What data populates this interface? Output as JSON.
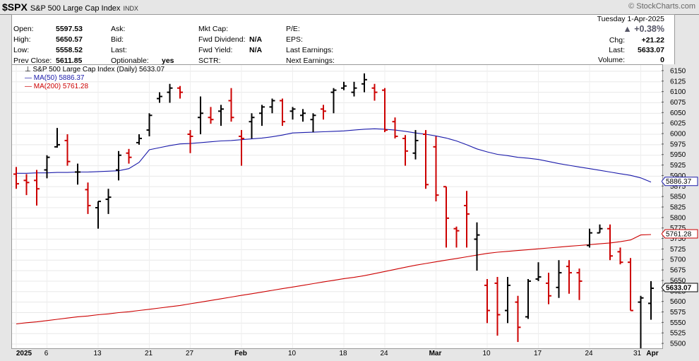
{
  "header": {
    "symbol": "$SPX",
    "name": "S&P 500 Large Cap Index",
    "exchange": "INDX",
    "brand": "© StockCharts.com"
  },
  "info": {
    "date": "Tuesday  1-Apr-2025",
    "pct_change": "▲ +0.38%",
    "col1": [
      {
        "label": "Open:",
        "value": "5597.53"
      },
      {
        "label": "High:",
        "value": "5650.57"
      },
      {
        "label": "Low:",
        "value": "5558.52"
      },
      {
        "label": "Prev Close:",
        "value": "5611.85"
      }
    ],
    "col2": [
      {
        "label": "Ask:",
        "value": ""
      },
      {
        "label": "Bid:",
        "value": ""
      },
      {
        "label": "Last:",
        "value": ""
      },
      {
        "label": "Optionable:",
        "value": "yes"
      }
    ],
    "col3": [
      {
        "label": "Mkt Cap:",
        "value": ""
      },
      {
        "label": "Fwd Dividend:",
        "value": "N/A"
      },
      {
        "label": "Fwd Yield:",
        "value": "N/A"
      },
      {
        "label": "SCTR:",
        "value": ""
      }
    ],
    "col4": [
      {
        "label": "P/E:",
        "value": ""
      },
      {
        "label": "EPS:",
        "value": ""
      },
      {
        "label": "Last Earnings:",
        "value": ""
      },
      {
        "label": "Next Earnings:",
        "value": ""
      }
    ],
    "col5": [
      {
        "label": "Chg:",
        "value": "+21.22"
      },
      {
        "label": "Last:",
        "value": "5633.07"
      },
      {
        "label": "Volume:",
        "value": "0"
      }
    ]
  },
  "legend": {
    "title": "S&P 500 Large Cap Index (Daily) 5633.07",
    "ma50": "MA(50) 5886.37",
    "ma200": "MA(200) 5761.28"
  },
  "colors": {
    "up": "#000000",
    "down": "#cc0000",
    "ma50": "#1a1aaa",
    "ma200": "#cc0000"
  },
  "chart_data": {
    "type": "ohlc",
    "ylim": [
      5490,
      6165
    ],
    "y_ticks": [
      5500,
      5525,
      5550,
      5575,
      5600,
      5625,
      5650,
      5675,
      5700,
      5725,
      5750,
      5775,
      5800,
      5825,
      5850,
      5875,
      5900,
      5925,
      5950,
      5975,
      6000,
      6025,
      6050,
      6075,
      6100,
      6125,
      6150
    ],
    "x_labels": [
      {
        "label": "2025",
        "idx": 0,
        "bold": true
      },
      {
        "label": "6",
        "idx": 3
      },
      {
        "label": "13",
        "idx": 8
      },
      {
        "label": "21",
        "idx": 13
      },
      {
        "label": "27",
        "idx": 17
      },
      {
        "label": "Feb",
        "idx": 22,
        "bold": true
      },
      {
        "label": "10",
        "idx": 27
      },
      {
        "label": "18",
        "idx": 32
      },
      {
        "label": "24",
        "idx": 36
      },
      {
        "label": "Mar",
        "idx": 41,
        "bold": true
      },
      {
        "label": "10",
        "idx": 46
      },
      {
        "label": "17",
        "idx": 51
      },
      {
        "label": "24",
        "idx": 56
      },
      {
        "label": "31",
        "idx": 61
      },
      {
        "label": "Apr",
        "idx": 62,
        "bold": true
      }
    ],
    "bars": [
      [
        5905,
        5922,
        5870,
        5882
      ],
      [
        5890,
        5905,
        5855,
        5885
      ],
      [
        5890,
        5915,
        5830,
        5870
      ],
      [
        5915,
        5950,
        5895,
        5945
      ],
      [
        5970,
        6015,
        5968,
        5975
      ],
      [
        5985,
        6000,
        5925,
        5935
      ],
      [
        5910,
        5930,
        5880,
        5910
      ],
      [
        5868,
        5885,
        5810,
        5830
      ],
      [
        5825,
        5840,
        5775,
        5840
      ],
      [
        5845,
        5870,
        5810,
        5850
      ],
      [
        5915,
        5960,
        5890,
        5950
      ],
      [
        5955,
        5965,
        5930,
        5945
      ],
      [
        5980,
        6000,
        5975,
        5990
      ],
      [
        6010,
        6050,
        5995,
        6045
      ],
      [
        6085,
        6100,
        6075,
        6090
      ],
      [
        6100,
        6120,
        6075,
        6110
      ],
      [
        6110,
        6115,
        6085,
        6100
      ],
      [
        6000,
        6010,
        5955,
        5995
      ],
      [
        6040,
        6090,
        6000,
        6050
      ],
      [
        6040,
        6065,
        6025,
        6035
      ],
      [
        6055,
        6070,
        6020,
        6060
      ],
      [
        6080,
        6110,
        6030,
        6040
      ],
      [
        5995,
        6010,
        5925,
        5990
      ],
      [
        6030,
        6050,
        5990,
        6040
      ],
      [
        6050,
        6070,
        6020,
        6065
      ],
      [
        6065,
        6085,
        6050,
        6080
      ],
      [
        6080,
        6085,
        6020,
        6030
      ],
      [
        6055,
        6065,
        6035,
        6060
      ],
      [
        6045,
        6060,
        6030,
        6050
      ],
      [
        6035,
        6050,
        6005,
        6045
      ],
      [
        6060,
        6070,
        6035,
        6055
      ],
      [
        6100,
        6110,
        6050,
        6105
      ],
      [
        6110,
        6125,
        6105,
        6115
      ],
      [
        6100,
        6125,
        6090,
        6110
      ],
      [
        6120,
        6145,
        6100,
        6130
      ],
      [
        6110,
        6120,
        6080,
        6100
      ],
      [
        6105,
        6110,
        6005,
        6010
      ],
      [
        6030,
        6040,
        5990,
        5995
      ],
      [
        5990,
        5998,
        5925,
        5960
      ],
      [
        5955,
        6010,
        5940,
        5985
      ],
      [
        6000,
        6010,
        5870,
        5880
      ],
      [
        5970,
        5995,
        5840,
        5855
      ],
      [
        5875,
        5875,
        5730,
        5800
      ],
      [
        5775,
        5780,
        5730,
        5770
      ],
      [
        5830,
        5865,
        5730,
        5810
      ],
      [
        5750,
        5790,
        5675,
        5760
      ],
      [
        5640,
        5655,
        5550,
        5580
      ],
      [
        5645,
        5660,
        5520,
        5570
      ],
      [
        5580,
        5660,
        5550,
        5640
      ],
      [
        5600,
        5615,
        5505,
        5540
      ],
      [
        5565,
        5655,
        5560,
        5650
      ],
      [
        5655,
        5695,
        5650,
        5660
      ],
      [
        5645,
        5670,
        5595,
        5615
      ],
      [
        5635,
        5700,
        5610,
        5670
      ],
      [
        5685,
        5700,
        5620,
        5670
      ],
      [
        5670,
        5680,
        5605,
        5650
      ],
      [
        5735,
        5775,
        5730,
        5765
      ],
      [
        5765,
        5785,
        5765,
        5775
      ],
      [
        5775,
        5785,
        5700,
        5710
      ],
      [
        5720,
        5730,
        5690,
        5695
      ],
      [
        5695,
        5705,
        5580,
        5580
      ],
      [
        5600,
        5615,
        5490,
        5610
      ],
      [
        5597,
        5650,
        5558,
        5633
      ]
    ],
    "ma50": [
      5907,
      5907,
      5908,
      5908,
      5909,
      5909,
      5910,
      5910,
      5911,
      5912,
      5913,
      5918,
      5933,
      5963,
      5968,
      5973,
      5977,
      5978,
      5980,
      5982,
      5984,
      5985,
      5987,
      5989,
      5991,
      5994,
      5998,
      6003,
      6004,
      6005,
      6006,
      6007,
      6008,
      6010,
      6012,
      6013,
      6012,
      6010,
      6007,
      6003,
      6000,
      5996,
      5991,
      5984,
      5975,
      5965,
      5958,
      5952,
      5949,
      5945,
      5943,
      5940,
      5935,
      5930,
      5926,
      5922,
      5918,
      5914,
      5910,
      5906,
      5902,
      5896,
      5886
    ],
    "ma200": [
      5548,
      5551,
      5553,
      5556,
      5559,
      5562,
      5565,
      5567,
      5570,
      5572,
      5575,
      5577,
      5580,
      5583,
      5586,
      5589,
      5592,
      5596,
      5600,
      5604,
      5608,
      5612,
      5616,
      5620,
      5624,
      5628,
      5632,
      5636,
      5640,
      5644,
      5648,
      5652,
      5656,
      5659,
      5663,
      5668,
      5673,
      5678,
      5683,
      5688,
      5692,
      5696,
      5700,
      5704,
      5708,
      5712,
      5716,
      5719,
      5721,
      5723,
      5725,
      5727,
      5729,
      5731,
      5733,
      5735,
      5737,
      5739,
      5741,
      5744,
      5748,
      5760,
      5761
    ],
    "last_labels": {
      "ma50": "5886.37",
      "ma200": "5761.28",
      "close": "5633.07"
    }
  }
}
